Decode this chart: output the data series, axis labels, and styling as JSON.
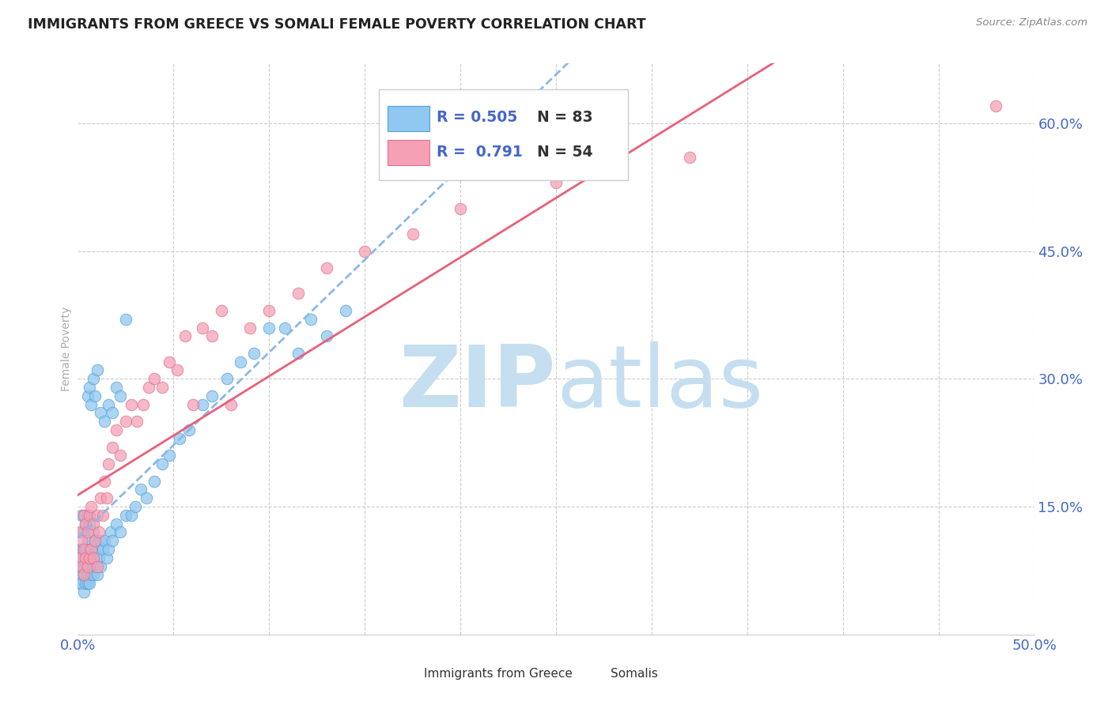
{
  "title": "IMMIGRANTS FROM GREECE VS SOMALI FEMALE POVERTY CORRELATION CHART",
  "source": "Source: ZipAtlas.com",
  "ylabel": "Female Poverty",
  "xlim": [
    0.0,
    0.5
  ],
  "ylim": [
    0.0,
    0.67
  ],
  "ytick_positions": [
    0.15,
    0.3,
    0.45,
    0.6
  ],
  "ytick_labels": [
    "15.0%",
    "30.0%",
    "45.0%",
    "60.0%"
  ],
  "grid_color": "#cccccc",
  "background_color": "#ffffff",
  "greece_color": "#8fc8f0",
  "greece_edge": "#5a9fd4",
  "somalia_color": "#f5a0b5",
  "somalia_edge": "#e07090",
  "greece_R": 0.505,
  "greece_N": 83,
  "somalia_R": 0.791,
  "somalia_N": 54,
  "greece_x": [
    0.0005,
    0.001,
    0.001,
    0.0015,
    0.0015,
    0.002,
    0.002,
    0.002,
    0.002,
    0.002,
    0.003,
    0.003,
    0.003,
    0.003,
    0.003,
    0.003,
    0.004,
    0.004,
    0.004,
    0.004,
    0.005,
    0.005,
    0.005,
    0.005,
    0.005,
    0.006,
    0.006,
    0.006,
    0.006,
    0.007,
    0.007,
    0.008,
    0.008,
    0.008,
    0.009,
    0.009,
    0.01,
    0.01,
    0.011,
    0.012,
    0.012,
    0.013,
    0.014,
    0.015,
    0.016,
    0.017,
    0.018,
    0.02,
    0.022,
    0.025,
    0.028,
    0.03,
    0.033,
    0.036,
    0.04,
    0.044,
    0.048,
    0.053,
    0.058,
    0.065,
    0.07,
    0.078,
    0.085,
    0.092,
    0.1,
    0.108,
    0.115,
    0.122,
    0.13,
    0.14,
    0.005,
    0.006,
    0.007,
    0.008,
    0.009,
    0.01,
    0.012,
    0.014,
    0.016,
    0.018,
    0.02,
    0.022,
    0.025
  ],
  "greece_y": [
    0.06,
    0.08,
    0.1,
    0.07,
    0.09,
    0.06,
    0.08,
    0.1,
    0.12,
    0.14,
    0.05,
    0.07,
    0.08,
    0.1,
    0.12,
    0.14,
    0.06,
    0.08,
    0.1,
    0.13,
    0.06,
    0.07,
    0.09,
    0.11,
    0.14,
    0.06,
    0.08,
    0.1,
    0.13,
    0.07,
    0.09,
    0.07,
    0.09,
    0.12,
    0.08,
    0.11,
    0.07,
    0.1,
    0.09,
    0.08,
    0.11,
    0.1,
    0.11,
    0.09,
    0.1,
    0.12,
    0.11,
    0.13,
    0.12,
    0.14,
    0.14,
    0.15,
    0.17,
    0.16,
    0.18,
    0.2,
    0.21,
    0.23,
    0.24,
    0.27,
    0.28,
    0.3,
    0.32,
    0.33,
    0.36,
    0.36,
    0.33,
    0.37,
    0.35,
    0.38,
    0.28,
    0.29,
    0.27,
    0.3,
    0.28,
    0.31,
    0.26,
    0.25,
    0.27,
    0.26,
    0.29,
    0.28,
    0.37
  ],
  "somalia_x": [
    0.001,
    0.001,
    0.002,
    0.002,
    0.003,
    0.003,
    0.003,
    0.004,
    0.004,
    0.005,
    0.005,
    0.006,
    0.006,
    0.007,
    0.007,
    0.008,
    0.008,
    0.009,
    0.01,
    0.01,
    0.011,
    0.012,
    0.013,
    0.014,
    0.015,
    0.016,
    0.018,
    0.02,
    0.022,
    0.025,
    0.028,
    0.031,
    0.034,
    0.037,
    0.04,
    0.044,
    0.048,
    0.052,
    0.056,
    0.06,
    0.065,
    0.07,
    0.075,
    0.08,
    0.09,
    0.1,
    0.115,
    0.13,
    0.15,
    0.175,
    0.2,
    0.25,
    0.32,
    0.48
  ],
  "somalia_y": [
    0.09,
    0.12,
    0.08,
    0.11,
    0.07,
    0.1,
    0.14,
    0.09,
    0.13,
    0.08,
    0.12,
    0.09,
    0.14,
    0.1,
    0.15,
    0.09,
    0.13,
    0.11,
    0.08,
    0.14,
    0.12,
    0.16,
    0.14,
    0.18,
    0.16,
    0.2,
    0.22,
    0.24,
    0.21,
    0.25,
    0.27,
    0.25,
    0.27,
    0.29,
    0.3,
    0.29,
    0.32,
    0.31,
    0.35,
    0.27,
    0.36,
    0.35,
    0.38,
    0.27,
    0.36,
    0.38,
    0.4,
    0.43,
    0.45,
    0.47,
    0.5,
    0.53,
    0.56,
    0.62
  ],
  "watermark_zip_color": "#c5dff0",
  "watermark_atlas_color": "#c5dff0",
  "title_color": "#222222",
  "tick_color": "#4466cc",
  "legend_R_color": "#4466cc",
  "legend_N_color": "#333333",
  "trendline_greece_color": "#8ab8e8",
  "trendline_greece_style": "--",
  "trendline_somalia_color": "#e8607a",
  "trendline_somalia_style": "-"
}
